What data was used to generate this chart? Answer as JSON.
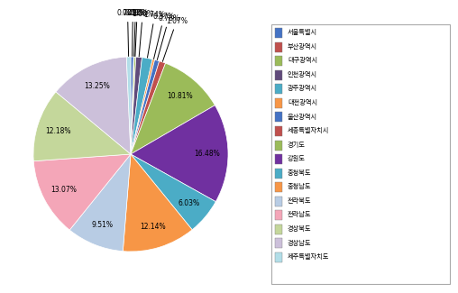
{
  "labels": [
    "서울특별시",
    "부산광역시",
    "대구광역시",
    "인천광역시",
    "광주광역시",
    "대전광역시",
    "울산광역시",
    "세종특별자치시",
    "경기도",
    "강원도",
    "충청북도",
    "충청남도",
    "전라북도",
    "전라남도",
    "경상북도",
    "경상남도",
    "제주특별자치도"
  ],
  "values": [
    0.48,
    0.11,
    0.26,
    1.0,
    1.74,
    0.37,
    0.78,
    1.07,
    10.81,
    16.48,
    6.03,
    12.14,
    9.51,
    13.07,
    12.18,
    13.25,
    0.7
  ],
  "colors": [
    "#4472C4",
    "#C0504D",
    "#9BBB59",
    "#604A7B",
    "#4BACC6",
    "#F79646",
    "#4472C4",
    "#C0504D",
    "#9BBB59",
    "#7030A0",
    "#4BACC6",
    "#F79646",
    "#B8CCE4",
    "#F4A6B8",
    "#C4D79B",
    "#CCC0DA",
    "#B2DEE8"
  ],
  "legend_colors": [
    "#4472C4",
    "#C0504D",
    "#9BBB59",
    "#604A7B",
    "#4BACC6",
    "#F79646",
    "#4472C4",
    "#C0504D",
    "#9BBB59",
    "#7030A0",
    "#4BACC6",
    "#F79646",
    "#B8CCE4",
    "#F4A6B8",
    "#C4D79B",
    "#CCC0DA",
    "#B2DEE8"
  ],
  "threshold": 2.0,
  "startangle": 90,
  "pctdistance": 0.78
}
